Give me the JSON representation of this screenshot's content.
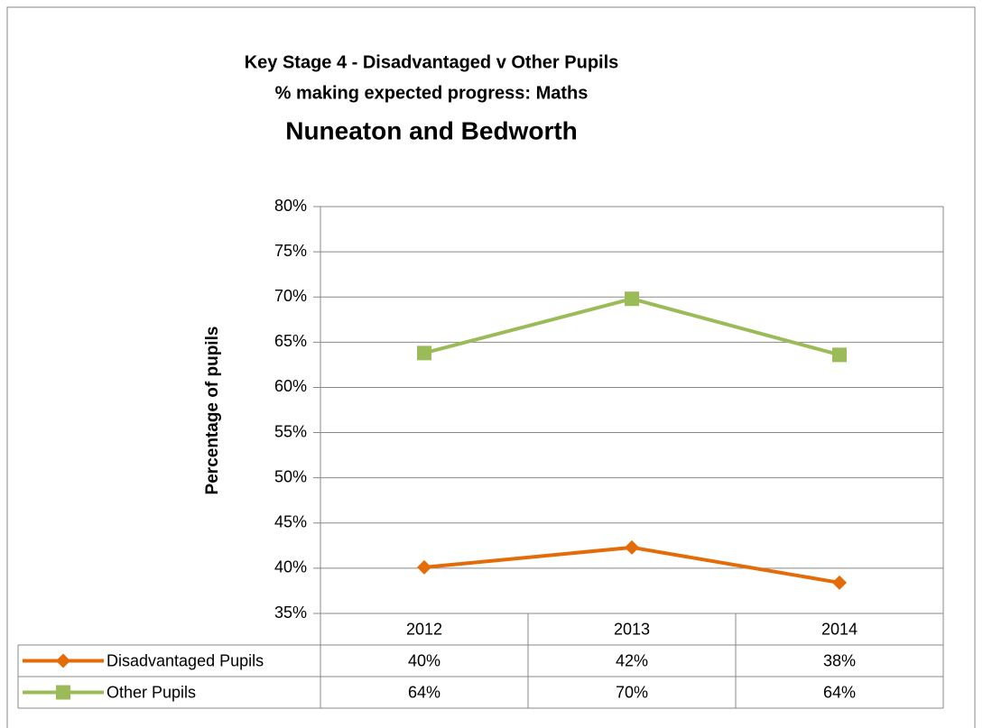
{
  "chart_data": {
    "type": "line",
    "title": [
      "Key Stage 4 - Disadvantaged v Other Pupils",
      "% making expected progress:  Maths",
      "Nuneaton and Bedworth"
    ],
    "ylabel": "Percentage of pupils",
    "categories": [
      "2012",
      "2013",
      "2014"
    ],
    "series": [
      {
        "name": "Disadvantaged Pupils",
        "color": "#e36c09",
        "marker": "diamond",
        "values": [
          40.1,
          42.3,
          38.4
        ],
        "value_labels": [
          "40%",
          "42%",
          "38%"
        ]
      },
      {
        "name": "Other Pupils",
        "color": "#9bbb59",
        "marker": "square",
        "values": [
          63.8,
          69.8,
          63.6
        ],
        "value_labels": [
          "64%",
          "70%",
          "64%"
        ]
      }
    ],
    "ylim": [
      35,
      80
    ],
    "yticks": [
      {
        "value": 35,
        "label": "35%"
      },
      {
        "value": 40,
        "label": "40%"
      },
      {
        "value": 45,
        "label": "45%"
      },
      {
        "value": 50,
        "label": "50%"
      },
      {
        "value": 55,
        "label": "55%"
      },
      {
        "value": 60,
        "label": "60%"
      },
      {
        "value": 65,
        "label": "65%"
      },
      {
        "value": 70,
        "label": "70%"
      },
      {
        "value": 75,
        "label": "75%"
      },
      {
        "value": 80,
        "label": "80%"
      }
    ],
    "grid": true
  }
}
